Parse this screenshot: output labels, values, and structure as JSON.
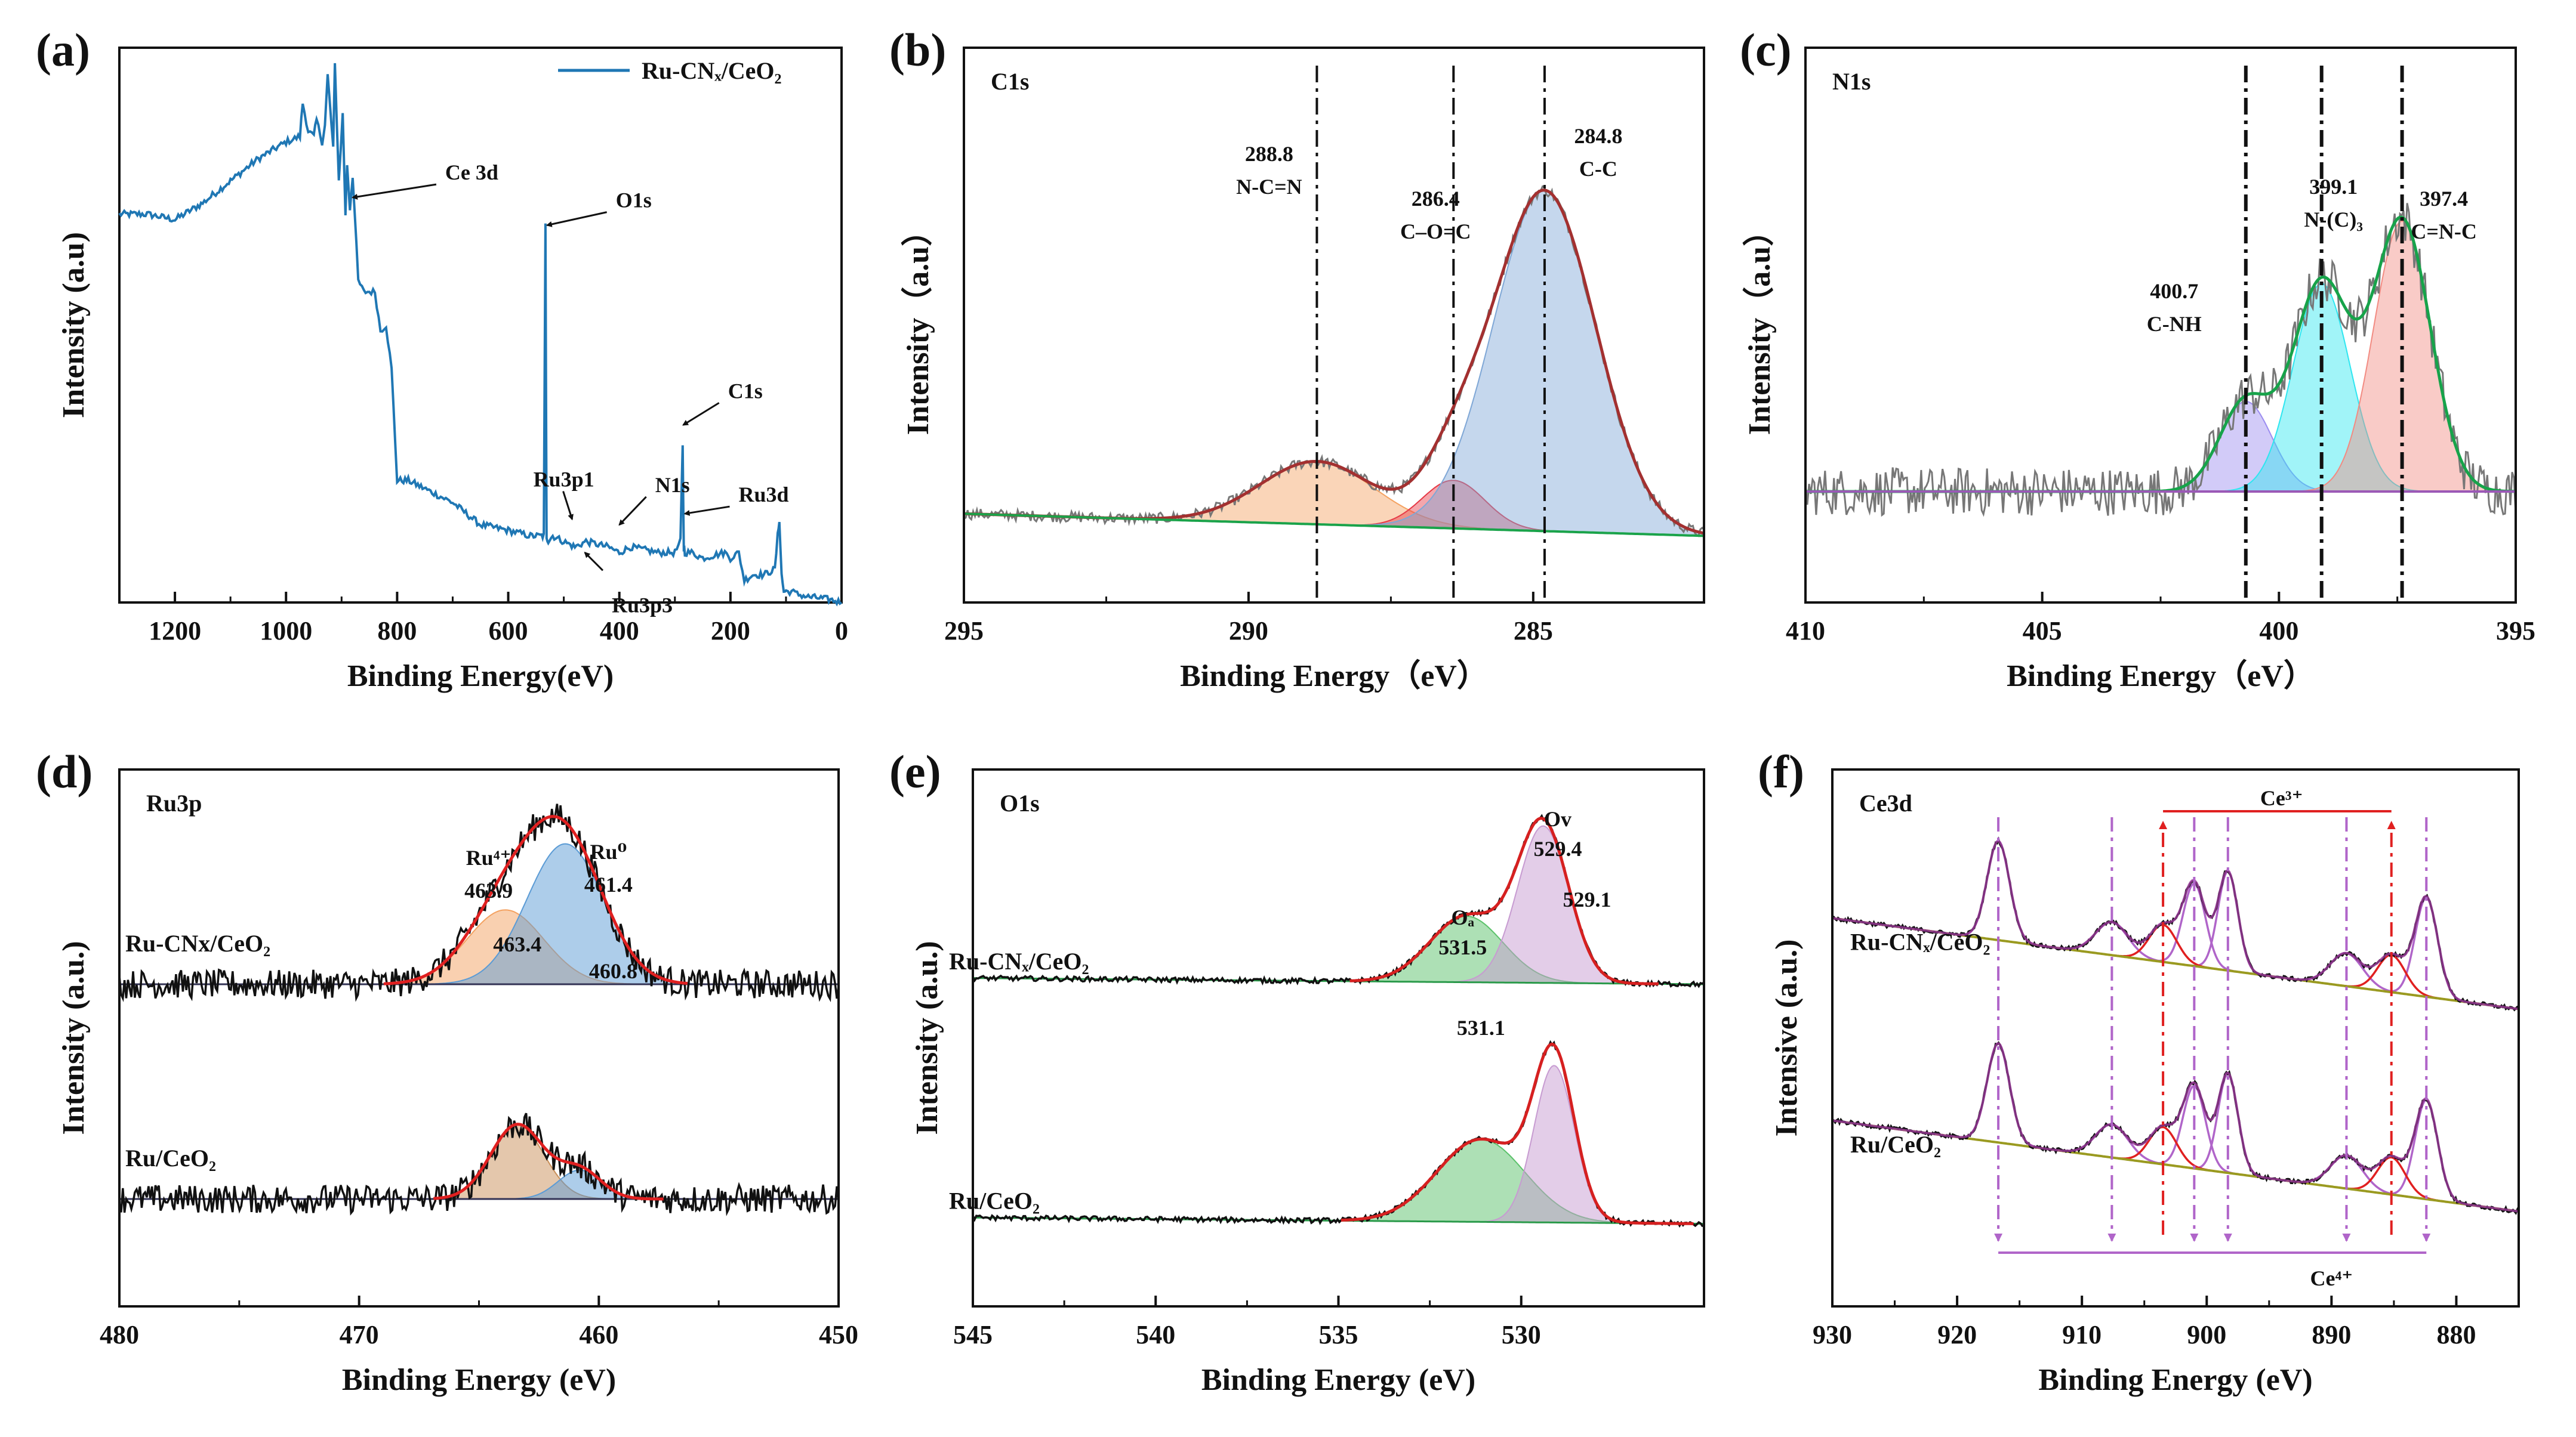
{
  "chart_data": [
    {
      "id": "a",
      "letter": "(a)",
      "type": "line",
      "legend": "Ru-CNₓ/CeO₂",
      "xlabel": "Binding Energy(eV)",
      "ylabel": "Intensity (a.u)",
      "xlim": [
        1300,
        0
      ],
      "ylim": [
        0,
        100
      ],
      "xticks": [
        1200,
        1000,
        800,
        600,
        400,
        200,
        0
      ],
      "series": [
        {
          "name": "Ru-CNx/CeO2",
          "color": "#1f77b4",
          "x": [
            1300,
            1250,
            1200,
            1150,
            1100,
            1050,
            1000,
            975,
            970,
            960,
            950,
            945,
            935,
            930,
            925,
            915,
            912,
            905,
            898,
            893,
            890,
            885,
            880,
            870,
            860,
            850,
            840,
            830,
            820,
            810,
            800,
            780,
            760,
            740,
            700,
            650,
            600,
            560,
            540,
            536,
            533,
            531,
            528,
            520,
            500,
            480,
            460,
            420,
            400,
            380,
            330,
            300,
            290,
            286,
            284,
            282,
            270,
            250,
            210,
            200,
            185,
            175,
            160,
            140,
            120,
            115,
            112,
            108,
            104,
            100,
            90,
            80,
            60,
            40,
            20,
            0
          ],
          "y": [
            70,
            70,
            69,
            72,
            76,
            80,
            83,
            84,
            90,
            85,
            84,
            87,
            83,
            86,
            95,
            82,
            97,
            76,
            88,
            70,
            79,
            71,
            77,
            58,
            56,
            56,
            56,
            49,
            50,
            42,
            22,
            22,
            21,
            20,
            18,
            14,
            13,
            12,
            12,
            12,
            68,
            12,
            11,
            12,
            11,
            10,
            11,
            10,
            9,
            10,
            9,
            9,
            11,
            28,
            10,
            9,
            9,
            8,
            9,
            8,
            9,
            4,
            5,
            5,
            6,
            12,
            15,
            5,
            2,
            2,
            2,
            1.5,
            1,
            0.8,
            0.5,
            0
          ]
        }
      ],
      "annotations": [
        {
          "text": "Ce 3d",
          "x": 880,
          "y": 73
        },
        {
          "text": "O1s",
          "x": 530,
          "y": 68
        },
        {
          "text": "C1s",
          "x": 285,
          "y": 32
        },
        {
          "text": "Ru3d",
          "x": 282,
          "y": 16
        },
        {
          "text": "Ru3p1",
          "x": 485,
          "y": 15
        },
        {
          "text": "N1s",
          "x": 400,
          "y": 14
        },
        {
          "text": "Ru3p3",
          "x": 462,
          "y": 9
        }
      ]
    },
    {
      "id": "b",
      "letter": "(b)",
      "type": "line",
      "panel_title": "C1s",
      "xlabel": "Binding Energy（eV）",
      "ylabel": "Intensity（a.u）",
      "xlim": [
        295,
        282
      ],
      "ylim": [
        -0.2,
        1.3
      ],
      "xticks": [
        295,
        290,
        285
      ],
      "background": {
        "x": [
          295,
          282
        ],
        "y": [
          0.04,
          -0.02
        ],
        "color": "#1aa34a"
      },
      "peaks": [
        {
          "center": 288.8,
          "height": 0.17,
          "width": 1.0,
          "color": "#f4a261"
        },
        {
          "center": 286.4,
          "height": 0.13,
          "width": 0.55,
          "color": "#e63946"
        },
        {
          "center": 284.8,
          "height": 0.92,
          "width": 0.9,
          "color": "#7fa7d6"
        }
      ],
      "envelope_color": "#a33030",
      "raw_color": "#777777",
      "dashed_lines": [
        288.8,
        286.4,
        284.8
      ],
      "labels": [
        {
          "lines": [
            "288.8",
            "N-C=N"
          ],
          "x": 288.8
        },
        {
          "lines": [
            "286.4",
            "C–O=C"
          ],
          "x": 286.4
        },
        {
          "lines": [
            "284.8",
            "C-C"
          ],
          "x": 284.8
        }
      ]
    },
    {
      "id": "c",
      "letter": "(c)",
      "type": "line",
      "panel_title": "N1s",
      "xlabel": "Binding Energy（eV）",
      "ylabel": "Intensity（a.u）",
      "xlim": [
        410,
        395
      ],
      "ylim": [
        -0.3,
        1.3
      ],
      "xticks": [
        410,
        405,
        400,
        395
      ],
      "background": {
        "x": [
          410,
          395
        ],
        "y": [
          0.02,
          0.02
        ],
        "color": "#9b59b6"
      },
      "peaks": [
        {
          "center": 400.7,
          "height": 0.26,
          "width": 0.55,
          "color": "#9b8cf0"
        },
        {
          "center": 399.1,
          "height": 0.6,
          "width": 0.6,
          "color": "#2ee6f0"
        },
        {
          "center": 397.4,
          "height": 0.78,
          "width": 0.6,
          "color": "#f28b82"
        }
      ],
      "envelope_color": "#17a34a",
      "raw_color": "#777777",
      "dashed_lines": [
        400.7,
        399.1,
        397.4
      ],
      "labels": [
        {
          "lines": [
            "400.7",
            "C-NH"
          ],
          "x": 400.7
        },
        {
          "lines": [
            "399.1",
            "N-(C)₃"
          ],
          "x": 399.1
        },
        {
          "lines": [
            "397.4",
            "C=N-C"
          ],
          "x": 397.4
        }
      ]
    },
    {
      "id": "d",
      "letter": "(d)",
      "type": "line",
      "panel_title": "Ru3p",
      "xlabel": "Binding Energy (eV)",
      "ylabel": "Intensity (a.u.)",
      "xlim": [
        480,
        450
      ],
      "ylim": [
        0,
        1.3
      ],
      "xticks": [
        480,
        470,
        460,
        450
      ],
      "stacks": [
        {
          "name": "Ru-CNx/CeO₂",
          "offset": 0.78,
          "peaks": [
            {
              "center": 463.9,
              "height": 0.18,
              "width": 1.6,
              "color": "#f4a261"
            },
            {
              "center": 461.4,
              "height": 0.34,
              "width": 1.6,
              "color": "#5b9bd5"
            }
          ]
        },
        {
          "name": "Ru/CeO₂",
          "offset": 0.26,
          "peaks": [
            {
              "center": 463.4,
              "height": 0.18,
              "width": 1.1,
              "color": "#c9905a"
            },
            {
              "center": 460.8,
              "height": 0.07,
              "width": 0.9,
              "color": "#5b9bd5"
            }
          ]
        }
      ],
      "envelope_color": "#e02020",
      "raw_color": "#111111",
      "baseline_color": "#333355",
      "labels": [
        {
          "lines": [
            "Ru⁴⁺",
            "463.9"
          ],
          "x": 464.6
        },
        {
          "lines": [
            "Ru⁰",
            "461.4"
          ],
          "x": 459.6
        },
        {
          "lines": [
            "463.4"
          ],
          "x": 463.4
        },
        {
          "lines": [
            "460.8"
          ],
          "x": 459.4
        }
      ]
    },
    {
      "id": "e",
      "letter": "(e)",
      "type": "line",
      "panel_title": "O1s",
      "xlabel": "Binding Energy (eV)",
      "ylabel": "Intensity (a.u.)",
      "xlim": [
        545,
        525
      ],
      "ylim": [
        0,
        1.3
      ],
      "xticks": [
        545,
        540,
        535,
        530
      ],
      "stacks": [
        {
          "name": "Ru-CNₓ/CeO₂",
          "offset": 0.78,
          "peaks": [
            {
              "center": 531.5,
              "height": 0.16,
              "width": 1.0,
              "color": "#5cc26b"
            },
            {
              "center": 529.4,
              "height": 0.38,
              "width": 0.7,
              "color": "#c79bd1"
            }
          ]
        },
        {
          "name": "Ru/CeO₂",
          "offset": 0.2,
          "peaks": [
            {
              "center": 531.1,
              "height": 0.2,
              "width": 1.2,
              "color": "#5cc26b"
            },
            {
              "center": 529.1,
              "height": 0.38,
              "width": 0.55,
              "color": "#c79bd1"
            }
          ]
        }
      ],
      "envelope_color": "#d62020",
      "raw_color": "#111111",
      "baseline_color": "#2a9a4a",
      "labels": [
        {
          "lines": [
            "Oₐ",
            "531.5"
          ],
          "x": 531.6
        },
        {
          "lines": [
            "Ov",
            "529.4"
          ],
          "x": 529.0
        },
        {
          "lines": [
            "531.1"
          ],
          "x": 531.1
        },
        {
          "lines": [
            "529.1"
          ],
          "x": 528.2
        }
      ]
    },
    {
      "id": "f",
      "letter": "(f)",
      "type": "line",
      "panel_title": "Ce3d",
      "xlabel": "Binding Energy (eV)",
      "ylabel": "Intensive (a.u.)",
      "xlim": [
        930,
        875
      ],
      "ylim": [
        0,
        1.3
      ],
      "xticks": [
        930,
        920,
        910,
        900,
        890,
        880
      ],
      "stacks": [
        {
          "name": "Ru-CNₓ/CeO₂",
          "offset": 0.87
        },
        {
          "name": "Ru/CeO₂",
          "offset": 0.38
        }
      ],
      "ce4_peaks": [
        916.7,
        907.6,
        901.0,
        898.3,
        888.8,
        882.4
      ],
      "ce3_peaks": [
        903.5,
        885.2
      ],
      "envelope_color": "#9b3a9b",
      "raw_color": "#111111",
      "baseline_color": "#9a9a20",
      "ce3_label": "Ce³⁺",
      "ce4_label": "Ce⁴⁺"
    }
  ]
}
